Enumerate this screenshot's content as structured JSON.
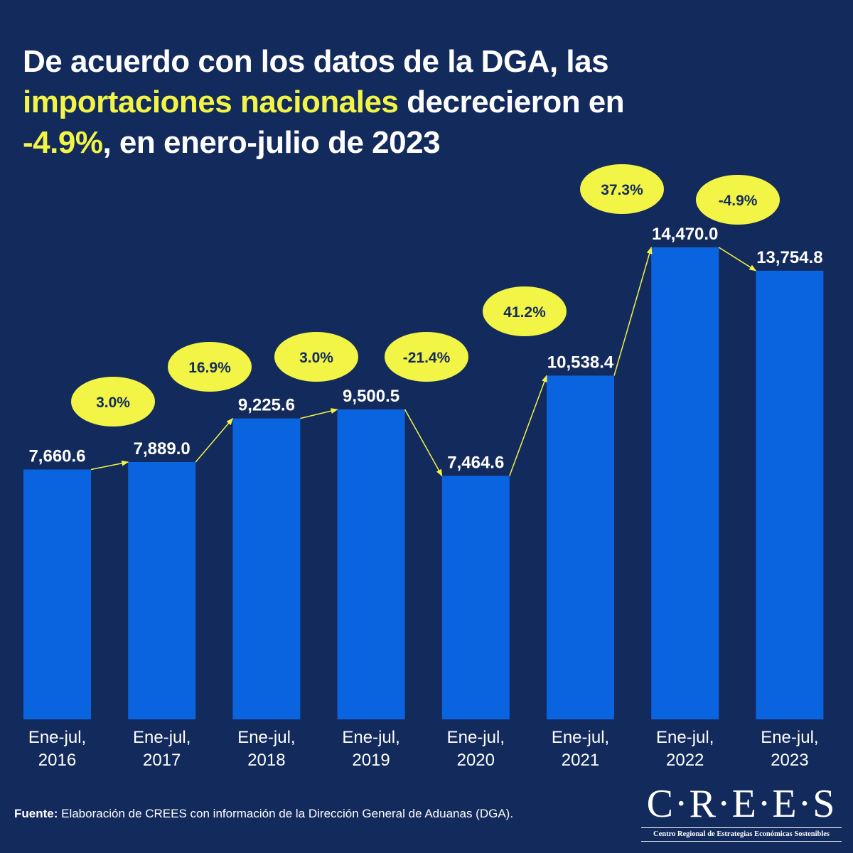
{
  "title": {
    "part1": "De acuerdo con los datos de la DGA, las",
    "highlight1": "importaciones nacionales",
    "part2": " decrecieron en",
    "highlight2": "-4.9%",
    "part3": ", en enero-julio de 2023"
  },
  "colors": {
    "background": "#132a5c",
    "bar": "#0a64e0",
    "highlight": "#f2f545",
    "text": "#ffffff",
    "bubble_text": "#132a5c"
  },
  "source": {
    "label": "Fuente:",
    "text": " Elaboración de CREES con información de la Dirección General de Aduanas (DGA)."
  },
  "logo": {
    "name": "C·R·E·E·S",
    "subtitle": "Centro Regional de Estrategias Económicas Sostenibles"
  },
  "chart_data": {
    "type": "bar",
    "title": "De acuerdo con los datos de la DGA, las importaciones nacionales decrecieron en -4.9%, en enero-julio de 2023",
    "xlabel": "",
    "ylabel": "",
    "ylim": [
      0,
      14470.0
    ],
    "grid": false,
    "categories": [
      [
        "Ene-jul,",
        "2016"
      ],
      [
        "Ene-jul,",
        "2017"
      ],
      [
        "Ene-jul,",
        "2018"
      ],
      [
        "Ene-jul,",
        "2019"
      ],
      [
        "Ene-jul,",
        "2020"
      ],
      [
        "Ene-jul,",
        "2021"
      ],
      [
        "Ene-jul,",
        "2022"
      ],
      [
        "Ene-jul,",
        "2023"
      ]
    ],
    "values": [
      7660.6,
      7889.0,
      9225.6,
      9500.5,
      7464.6,
      10538.4,
      14470.0,
      13754.8
    ],
    "value_labels": [
      "7,660.6",
      "7,889.0",
      "9,225.6",
      "9,500.5",
      "7,464.6",
      "10,538.4",
      "14,470.0",
      "13,754.8"
    ],
    "growth_rates": [
      "3.0%",
      "16.9%",
      "3.0%",
      "-21.4%",
      "41.2%",
      "37.3%",
      "-4.9%"
    ],
    "growth_rate_values": [
      3.0,
      16.9,
      3.0,
      -21.4,
      41.2,
      37.3,
      -4.9
    ]
  }
}
